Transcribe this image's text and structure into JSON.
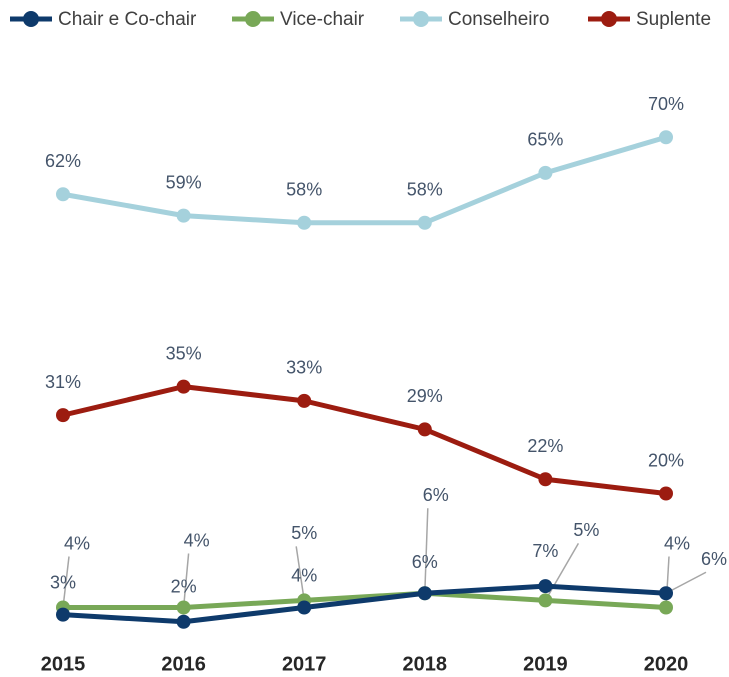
{
  "chart_data": {
    "type": "line",
    "categories": [
      "2015",
      "2016",
      "2017",
      "2018",
      "2019",
      "2020"
    ],
    "series": [
      {
        "name": "Chair e Co-chair",
        "color": "#0e3a6b",
        "values": [
          3,
          2,
          4,
          6,
          7,
          6
        ],
        "value_labels": [
          "3%",
          "2%",
          "4%",
          "6%",
          "7%",
          "6%"
        ]
      },
      {
        "name": "Vice-chair",
        "color": "#78a857",
        "values": [
          4,
          4,
          5,
          6,
          5,
          4
        ],
        "value_labels": [
          "4%",
          "4%",
          "5%",
          "6%",
          "5%",
          "4%"
        ]
      },
      {
        "name": "Conselheiro",
        "color": "#a5d1dc",
        "values": [
          62,
          59,
          58,
          58,
          65,
          70
        ],
        "value_labels": [
          "62%",
          "59%",
          "58%",
          "58%",
          "65%",
          "70%"
        ]
      },
      {
        "name": "Suplente",
        "color": "#9c1c10",
        "values": [
          31,
          35,
          33,
          29,
          22,
          20
        ],
        "value_labels": [
          "31%",
          "35%",
          "33%",
          "29%",
          "22%",
          "20%"
        ]
      }
    ]
  }
}
